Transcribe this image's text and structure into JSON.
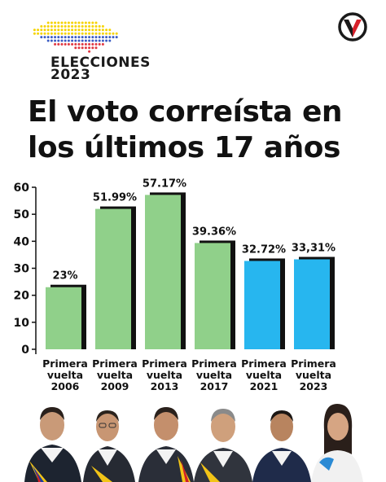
{
  "header": {
    "logo_line1": "ELECCIONES",
    "logo_line2": "2023",
    "brand_icon": "v-logo-icon",
    "headline_line1": "El voto correísta en",
    "headline_line2": "los últimos 17 años"
  },
  "colors": {
    "green": "#90d08a",
    "blue": "#27b6ef",
    "shadow": "#111111",
    "brand_red": "#d6202a"
  },
  "chart_data": {
    "type": "bar",
    "title": "",
    "xlabel": "",
    "ylabel": "",
    "ylim": [
      0,
      60
    ],
    "yticks": [
      "0",
      "10",
      "20",
      "30",
      "40",
      "50",
      "60"
    ],
    "grid": false,
    "categories": [
      {
        "line1": "Primera",
        "line2": "vuelta",
        "year": "2006"
      },
      {
        "line1": "Primera",
        "line2": "vuelta",
        "year": "2009"
      },
      {
        "line1": "Primera",
        "line2": "vuelta",
        "year": "2013"
      },
      {
        "line1": "Primera",
        "line2": "vuelta",
        "year": "2017"
      },
      {
        "line1": "Primera",
        "line2": "vuelta",
        "year": "2021"
      },
      {
        "line1": "Primera",
        "line2": "vuelta",
        "year": "2023"
      }
    ],
    "values": [
      23,
      51.99,
      57.17,
      39.36,
      32.72,
      33.31
    ],
    "labels": [
      "23%",
      "51.99%",
      "57.17%",
      "39.36%",
      "32.72%",
      "33,31%"
    ],
    "bar_colors": [
      "#90d08a",
      "#90d08a",
      "#90d08a",
      "#90d08a",
      "#27b6ef",
      "#27b6ef"
    ]
  }
}
